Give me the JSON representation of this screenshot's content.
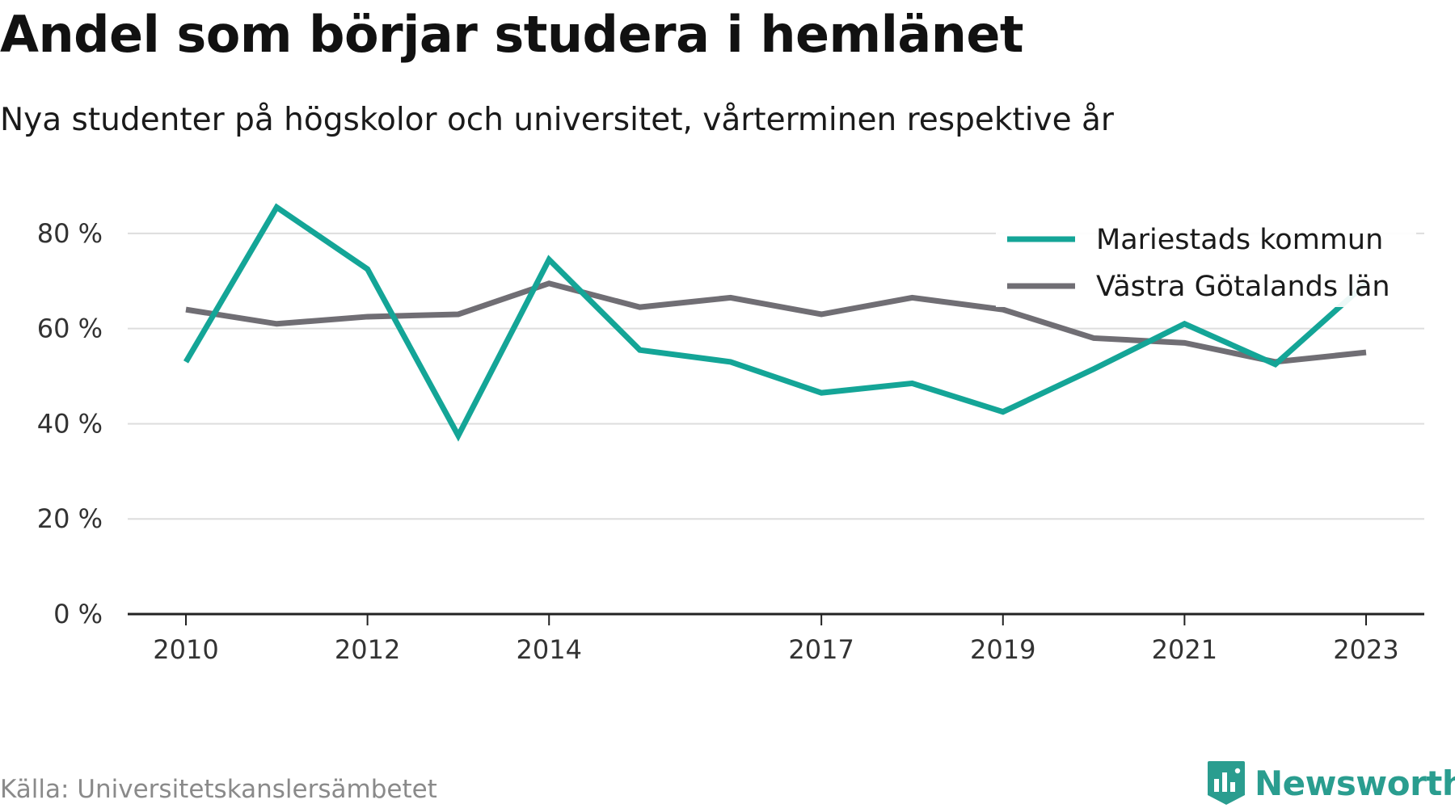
{
  "title": "Andel som börjar studera i hemlänet",
  "subtitle": "Nya studenter på högskolor och universitet, vårterminen respektive år",
  "source": "Källa: Universitetskanslersämbetet",
  "brand": "Newsworthy",
  "colors": {
    "mariestad": "#14a597",
    "vastra_gotaland": "#706e74",
    "grid": "#dddddd",
    "axis": "#222222",
    "brand": "#2a9d8f"
  },
  "chart_data": {
    "type": "line",
    "x": [
      2010,
      2011,
      2012,
      2013,
      2014,
      2015,
      2016,
      2017,
      2018,
      2019,
      2020,
      2021,
      2022,
      2023
    ],
    "x_tick_values": [
      2010,
      2012,
      2014,
      2017,
      2019,
      2021,
      2023
    ],
    "x_tick_labels": [
      "2010",
      "2012",
      "2014",
      "2017",
      "2019",
      "2021",
      "2023"
    ],
    "ylim": [
      0,
      90
    ],
    "y_ticks": [
      0,
      20,
      40,
      60,
      80
    ],
    "y_tick_labels": [
      "0 %",
      "20 %",
      "40 %",
      "60 %",
      "80 %"
    ],
    "grid": true,
    "legend_position": "top-right",
    "series": [
      {
        "name": "Mariestads kommun",
        "color": "#14a597",
        "values": [
          53,
          85.5,
          72.5,
          37.5,
          74.5,
          55.5,
          53,
          46.5,
          48.5,
          42.5,
          51.5,
          61,
          52.5,
          69.5
        ]
      },
      {
        "name": "Västra Götalands län",
        "color": "#706e74",
        "values": [
          64,
          61,
          62.5,
          63,
          69.5,
          64.5,
          66.5,
          63,
          66.5,
          64,
          58,
          57,
          53,
          55
        ]
      }
    ]
  }
}
